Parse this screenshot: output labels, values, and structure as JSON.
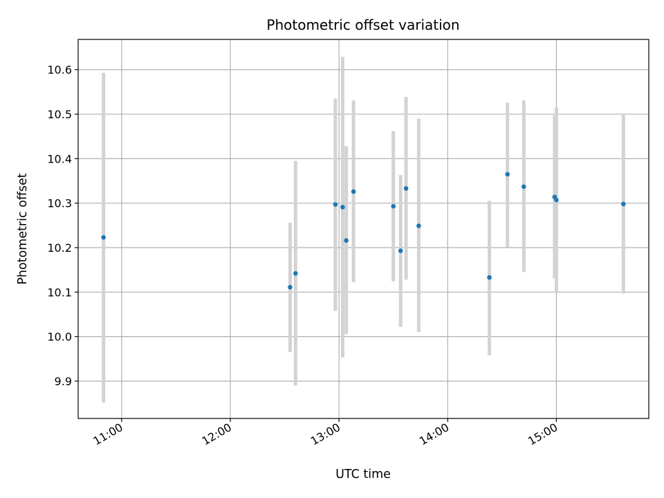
{
  "chart_data": {
    "type": "scatter",
    "title": "Photometric offset variation",
    "xlabel": "UTC time",
    "ylabel": "Photometric offset",
    "x_tick_labels": [
      "11:00",
      "12:00",
      "13:00",
      "14:00",
      "15:00"
    ],
    "x_ticks": [
      "11:00",
      "12:00",
      "13:00",
      "14:00",
      "15:00"
    ],
    "xlim": [
      "10:36",
      "15:51"
    ],
    "y_ticks": [
      9.9,
      10.0,
      10.1,
      10.2,
      10.3,
      10.4,
      10.5,
      10.6
    ],
    "ylim": [
      9.816,
      10.668
    ],
    "grid": true,
    "marker_color": "#1f77b4",
    "errorbar_color": "#d3d3d3",
    "points": [
      {
        "x": "10:50",
        "y": 10.223,
        "low": 9.852,
        "high": 10.593
      },
      {
        "x": "12:33",
        "y": 10.111,
        "low": 9.965,
        "high": 10.256
      },
      {
        "x": "12:36",
        "y": 10.142,
        "low": 9.89,
        "high": 10.395
      },
      {
        "x": "12:58",
        "y": 10.297,
        "low": 10.058,
        "high": 10.535
      },
      {
        "x": "13:02",
        "y": 10.291,
        "low": 9.953,
        "high": 10.629
      },
      {
        "x": "13:04",
        "y": 10.216,
        "low": 10.005,
        "high": 10.428
      },
      {
        "x": "13:08",
        "y": 10.326,
        "low": 10.122,
        "high": 10.531
      },
      {
        "x": "13:30",
        "y": 10.293,
        "low": 10.124,
        "high": 10.462
      },
      {
        "x": "13:34",
        "y": 10.193,
        "low": 10.022,
        "high": 10.363
      },
      {
        "x": "13:37",
        "y": 10.333,
        "low": 10.128,
        "high": 10.539
      },
      {
        "x": "13:44",
        "y": 10.249,
        "low": 10.01,
        "high": 10.49
      },
      {
        "x": "14:23",
        "y": 10.133,
        "low": 9.958,
        "high": 10.305
      },
      {
        "x": "14:33",
        "y": 10.365,
        "low": 10.201,
        "high": 10.526
      },
      {
        "x": "14:42",
        "y": 10.337,
        "low": 10.145,
        "high": 10.531
      },
      {
        "x": "14:59",
        "y": 10.314,
        "low": 10.131,
        "high": 10.498
      },
      {
        "x": "15:00",
        "y": 10.307,
        "low": 10.1,
        "high": 10.515
      },
      {
        "x": "15:37",
        "y": 10.298,
        "low": 10.097,
        "high": 10.5
      }
    ]
  }
}
